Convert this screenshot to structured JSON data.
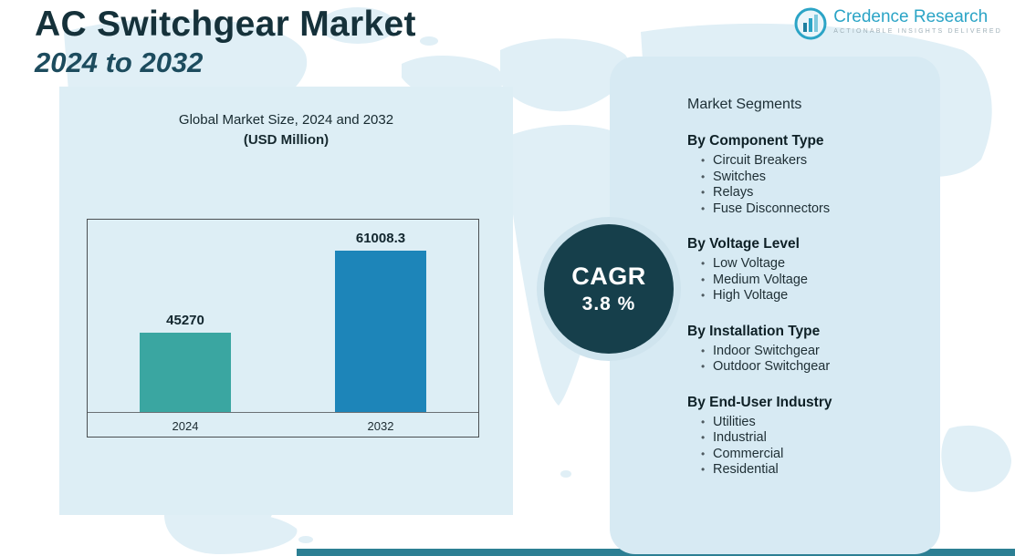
{
  "header": {
    "title": "AC Switchgear Market",
    "subtitle": "2024 to 2032"
  },
  "logo": {
    "name": "Credence Research",
    "tagline": "Actionable Insights Delivered"
  },
  "chart_panel": {
    "title": "Global Market Size, 2024 and 2032",
    "subtitle": "(USD Million)"
  },
  "chart_data": {
    "type": "bar",
    "title": "Global Market Size, 2024 and 2032 (USD Million)",
    "categories": [
      "2024",
      "2032"
    ],
    "values": [
      45270,
      61008.3
    ],
    "value_labels": [
      "45270",
      "61008.3"
    ],
    "bar_colors": [
      "#3aa6a1",
      "#1d85b9"
    ],
    "ylim": [
      30000,
      65000
    ],
    "grid": false,
    "legend": false
  },
  "cagr": {
    "label": "CAGR",
    "value": "3.8 %"
  },
  "segments": {
    "title": "Market Segments",
    "groups": [
      {
        "heading": "By Component Type",
        "items": [
          "Circuit Breakers",
          "Switches",
          "Relays",
          "Fuse Disconnectors"
        ]
      },
      {
        "heading": "By Voltage Level",
        "items": [
          "Low Voltage",
          "Medium Voltage",
          "High Voltage"
        ]
      },
      {
        "heading": "By Installation Type",
        "items": [
          "Indoor Switchgear",
          "Outdoor Switchgear"
        ]
      },
      {
        "heading": "By End-User Industry",
        "items": [
          "Utilities",
          "Industrial",
          "Commercial",
          "Residential"
        ]
      }
    ]
  },
  "colors": {
    "accent_teal": "#2ba4c6",
    "dark_circle": "#163f4b",
    "panel_blue_left": "#ddeef5",
    "panel_blue_right": "#d7eaf3",
    "bar_2024": "#3aa6a1",
    "bar_2032": "#1d85b9",
    "bottom_strip": "#2c7f93"
  }
}
